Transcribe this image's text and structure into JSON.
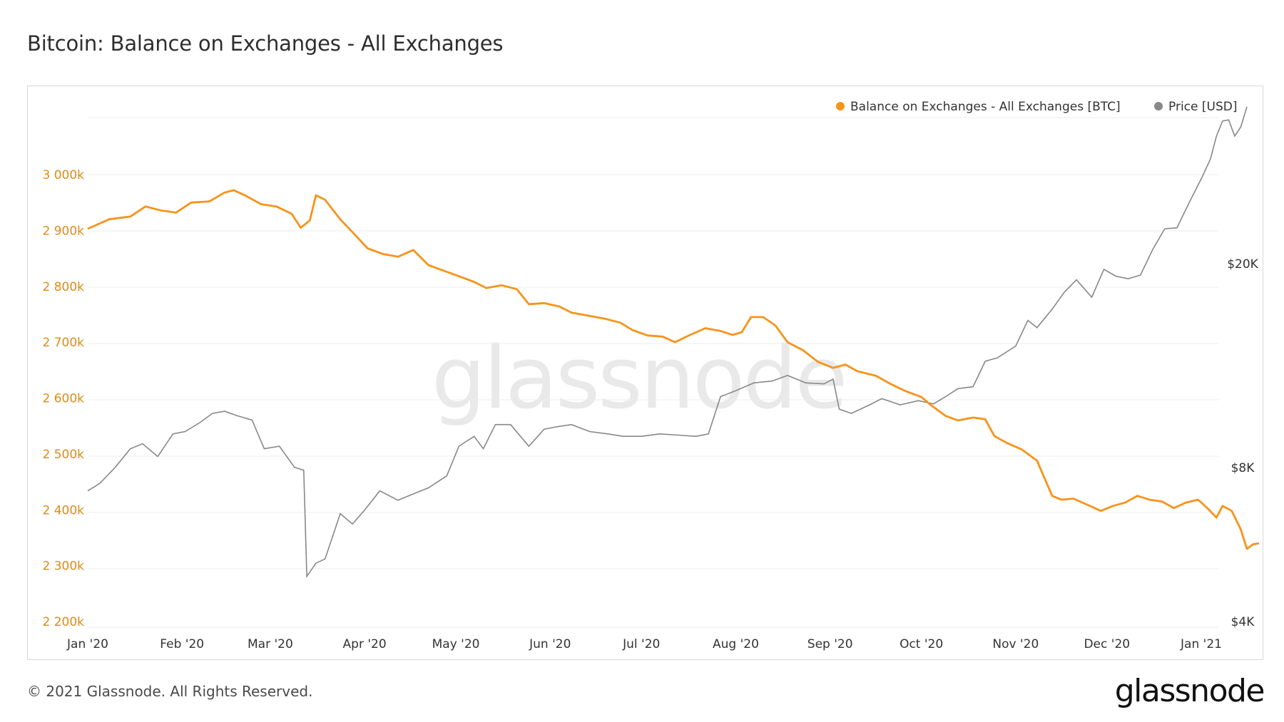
{
  "title": "Bitcoin: Balance on Exchanges - All Exchanges",
  "footer": "© 2021 Glassnode. All Rights Reserved.",
  "logo": "glassnode",
  "watermark": "glassnode",
  "colors": {
    "balance": "#f7931a",
    "price": "#888888",
    "grid": "#ececec",
    "left_ticks": "#e08a16"
  },
  "chart_data": {
    "type": "line",
    "x_ticks": [
      "Jan '20",
      "Feb '20",
      "Mar '20",
      "Apr '20",
      "May '20",
      "Jun '20",
      "Jul '20",
      "Aug '20",
      "Sep '20",
      "Oct '20",
      "Nov '20",
      "Dec '20",
      "Jan '21"
    ],
    "y_left": {
      "ticks": [
        "2 200k",
        "2 300k",
        "2 400k",
        "2 500k",
        "2 600k",
        "2 700k",
        "2 800k",
        "2 900k",
        "3 000k"
      ],
      "range": [
        2200,
        3000
      ],
      "unit": "k BTC"
    },
    "y_right": {
      "ticks": [
        "$4K",
        "$8K",
        "$20K"
      ],
      "scale": "log"
    },
    "legend": {
      "position": "top-right",
      "items": [
        "Balance on Exchanges - All Exchanges [BTC]",
        "Price [USD]"
      ]
    },
    "grid": true,
    "series": [
      {
        "name": "Balance on Exchanges - All Exchanges [BTC]",
        "axis": "left",
        "points": [
          [
            "2020-01-01",
            2903
          ],
          [
            "2020-01-08",
            2920
          ],
          [
            "2020-01-15",
            2925
          ],
          [
            "2020-01-20",
            2943
          ],
          [
            "2020-01-25",
            2936
          ],
          [
            "2020-01-30",
            2932
          ],
          [
            "2020-02-04",
            2950
          ],
          [
            "2020-02-10",
            2952
          ],
          [
            "2020-02-15",
            2968
          ],
          [
            "2020-02-18",
            2972
          ],
          [
            "2020-02-22",
            2962
          ],
          [
            "2020-02-27",
            2947
          ],
          [
            "2020-03-03",
            2943
          ],
          [
            "2020-03-08",
            2930
          ],
          [
            "2020-03-11",
            2905
          ],
          [
            "2020-03-14",
            2918
          ],
          [
            "2020-03-16",
            2963
          ],
          [
            "2020-03-19",
            2955
          ],
          [
            "2020-03-24",
            2920
          ],
          [
            "2020-03-28",
            2897
          ],
          [
            "2020-04-02",
            2868
          ],
          [
            "2020-04-07",
            2858
          ],
          [
            "2020-04-12",
            2853
          ],
          [
            "2020-04-17",
            2865
          ],
          [
            "2020-04-22",
            2838
          ],
          [
            "2020-04-27",
            2828
          ],
          [
            "2020-05-02",
            2818
          ],
          [
            "2020-05-07",
            2808
          ],
          [
            "2020-05-11",
            2797
          ],
          [
            "2020-05-16",
            2802
          ],
          [
            "2020-05-21",
            2795
          ],
          [
            "2020-05-25",
            2768
          ],
          [
            "2020-05-30",
            2770
          ],
          [
            "2020-06-04",
            2764
          ],
          [
            "2020-06-08",
            2753
          ],
          [
            "2020-06-14",
            2747
          ],
          [
            "2020-06-19",
            2742
          ],
          [
            "2020-06-24",
            2735
          ],
          [
            "2020-06-28",
            2722
          ],
          [
            "2020-07-03",
            2712
          ],
          [
            "2020-07-08",
            2710
          ],
          [
            "2020-07-12",
            2700
          ],
          [
            "2020-07-17",
            2713
          ],
          [
            "2020-07-22",
            2725
          ],
          [
            "2020-07-27",
            2720
          ],
          [
            "2020-07-31",
            2713
          ],
          [
            "2020-08-03",
            2718
          ],
          [
            "2020-08-06",
            2745
          ],
          [
            "2020-08-10",
            2745
          ],
          [
            "2020-08-14",
            2730
          ],
          [
            "2020-08-18",
            2700
          ],
          [
            "2020-08-23",
            2686
          ],
          [
            "2020-08-28",
            2665
          ],
          [
            "2020-09-02",
            2654
          ],
          [
            "2020-09-06",
            2660
          ],
          [
            "2020-09-10",
            2648
          ],
          [
            "2020-09-16",
            2640
          ],
          [
            "2020-09-21",
            2625
          ],
          [
            "2020-09-26",
            2612
          ],
          [
            "2020-10-01",
            2602
          ],
          [
            "2020-10-04",
            2588
          ],
          [
            "2020-10-09",
            2568
          ],
          [
            "2020-10-13",
            2560
          ],
          [
            "2020-10-18",
            2565
          ],
          [
            "2020-10-22",
            2562
          ],
          [
            "2020-10-25",
            2532
          ],
          [
            "2020-10-29",
            2520
          ],
          [
            "2020-11-03",
            2508
          ],
          [
            "2020-11-08",
            2488
          ],
          [
            "2020-11-13",
            2425
          ],
          [
            "2020-11-16",
            2418
          ],
          [
            "2020-11-20",
            2420
          ],
          [
            "2020-11-25",
            2408
          ],
          [
            "2020-11-29",
            2398
          ],
          [
            "2020-12-03",
            2407
          ],
          [
            "2020-12-07",
            2413
          ],
          [
            "2020-12-11",
            2425
          ],
          [
            "2020-12-15",
            2418
          ],
          [
            "2020-12-19",
            2415
          ],
          [
            "2020-12-23",
            2403
          ],
          [
            "2020-12-27",
            2413
          ],
          [
            "2020-12-31",
            2418
          ],
          [
            "2021-01-03",
            2403
          ],
          [
            "2021-01-06",
            2386
          ],
          [
            "2021-01-08",
            2407
          ],
          [
            "2021-01-11",
            2398
          ],
          [
            "2021-01-14",
            2365
          ],
          [
            "2021-01-16",
            2330
          ],
          [
            "2021-01-18",
            2338
          ],
          [
            "2021-01-20",
            2340
          ]
        ]
      },
      {
        "name": "Price [USD]",
        "axis": "right",
        "points": [
          [
            "2020-01-01",
            7200
          ],
          [
            "2020-01-05",
            7450
          ],
          [
            "2020-01-10",
            8000
          ],
          [
            "2020-01-15",
            8700
          ],
          [
            "2020-01-19",
            8900
          ],
          [
            "2020-01-24",
            8400
          ],
          [
            "2020-01-29",
            9300
          ],
          [
            "2020-02-02",
            9400
          ],
          [
            "2020-02-07",
            9800
          ],
          [
            "2020-02-11",
            10200
          ],
          [
            "2020-02-15",
            10300
          ],
          [
            "2020-02-19",
            10100
          ],
          [
            "2020-02-24",
            9900
          ],
          [
            "2020-02-28",
            8700
          ],
          [
            "2020-03-04",
            8800
          ],
          [
            "2020-03-09",
            8000
          ],
          [
            "2020-03-12",
            7900
          ],
          [
            "2020-03-13",
            4900
          ],
          [
            "2020-03-16",
            5200
          ],
          [
            "2020-03-19",
            5300
          ],
          [
            "2020-03-24",
            6500
          ],
          [
            "2020-03-28",
            6200
          ],
          [
            "2020-04-01",
            6600
          ],
          [
            "2020-04-06",
            7200
          ],
          [
            "2020-04-12",
            6900
          ],
          [
            "2020-04-17",
            7100
          ],
          [
            "2020-04-22",
            7300
          ],
          [
            "2020-04-28",
            7700
          ],
          [
            "2020-05-02",
            8800
          ],
          [
            "2020-05-07",
            9200
          ],
          [
            "2020-05-10",
            8700
          ],
          [
            "2020-05-14",
            9700
          ],
          [
            "2020-05-19",
            9700
          ],
          [
            "2020-05-25",
            8800
          ],
          [
            "2020-05-30",
            9500
          ],
          [
            "2020-06-03",
            9600
          ],
          [
            "2020-06-08",
            9700
          ],
          [
            "2020-06-14",
            9400
          ],
          [
            "2020-06-20",
            9300
          ],
          [
            "2020-06-25",
            9200
          ],
          [
            "2020-07-01",
            9200
          ],
          [
            "2020-07-07",
            9300
          ],
          [
            "2020-07-13",
            9250
          ],
          [
            "2020-07-19",
            9200
          ],
          [
            "2020-07-23",
            9300
          ],
          [
            "2020-07-27",
            11000
          ],
          [
            "2020-08-01",
            11300
          ],
          [
            "2020-08-07",
            11700
          ],
          [
            "2020-08-13",
            11800
          ],
          [
            "2020-08-18",
            12100
          ],
          [
            "2020-08-24",
            11700
          ],
          [
            "2020-08-30",
            11650
          ],
          [
            "2020-09-02",
            11900
          ],
          [
            "2020-09-04",
            10400
          ],
          [
            "2020-09-08",
            10200
          ],
          [
            "2020-09-14",
            10600
          ],
          [
            "2020-09-18",
            10900
          ],
          [
            "2020-09-24",
            10600
          ],
          [
            "2020-09-30",
            10800
          ],
          [
            "2020-10-05",
            10650
          ],
          [
            "2020-10-09",
            11000
          ],
          [
            "2020-10-13",
            11400
          ],
          [
            "2020-10-18",
            11500
          ],
          [
            "2020-10-22",
            12900
          ],
          [
            "2020-10-26",
            13100
          ],
          [
            "2020-11-01",
            13800
          ],
          [
            "2020-11-05",
            15500
          ],
          [
            "2020-11-08",
            15000
          ],
          [
            "2020-11-13",
            16300
          ],
          [
            "2020-11-17",
            17600
          ],
          [
            "2020-11-21",
            18600
          ],
          [
            "2020-11-26",
            17200
          ],
          [
            "2020-11-30",
            19500
          ],
          [
            "2020-12-04",
            18900
          ],
          [
            "2020-12-08",
            18700
          ],
          [
            "2020-12-12",
            19000
          ],
          [
            "2020-12-16",
            21300
          ],
          [
            "2020-12-20",
            23400
          ],
          [
            "2020-12-24",
            23500
          ],
          [
            "2020-12-28",
            26300
          ],
          [
            "2021-01-01",
            29300
          ],
          [
            "2021-01-04",
            32000
          ],
          [
            "2021-01-06",
            35500
          ],
          [
            "2021-01-08",
            38000
          ],
          [
            "2021-01-10",
            38200
          ],
          [
            "2021-01-12",
            35500
          ],
          [
            "2021-01-14",
            37000
          ],
          [
            "2021-01-16",
            40500
          ]
        ]
      }
    ]
  }
}
